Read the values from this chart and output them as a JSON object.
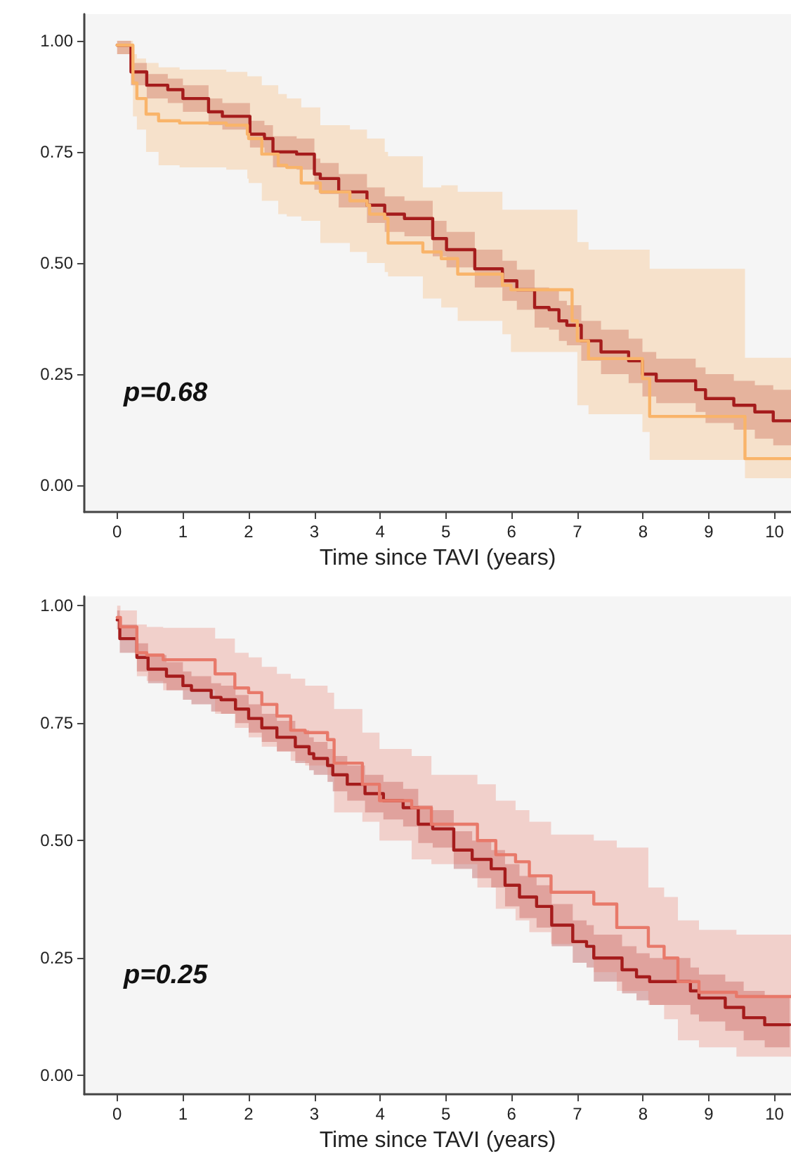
{
  "chart_data": [
    {
      "type": "step",
      "xlabel": "Time since TAVI (years)",
      "annotations": [
        "p=0.68"
      ],
      "xlim": [
        -0.5,
        10.25
      ],
      "xticks": [
        0,
        1,
        2,
        3,
        4,
        5,
        6,
        7,
        8,
        9,
        10
      ],
      "ylim": [
        -0.06,
        1.06
      ],
      "yticks": [
        {
          "value": 0,
          "label": "0.00"
        },
        {
          "value": 0.25,
          "label": "0.25"
        },
        {
          "value": 0.5,
          "label": "0.50"
        },
        {
          "value": 0.75,
          "label": "0.75"
        },
        {
          "value": 1,
          "label": "1.00"
        }
      ],
      "grid": false,
      "legend": false,
      "line_style": "solid",
      "marker": "none",
      "series": [
        {
          "color": "#a51c1c",
          "x": [
            0,
            0.21,
            0.45,
            0.77,
            1.0,
            1.39,
            1.6,
            2.02,
            2.24,
            2.37,
            2.73,
            3.0,
            3.09,
            3.37,
            3.8,
            4.07,
            4.37,
            4.8,
            5.01,
            5.44,
            5.86,
            6.08,
            6.35,
            6.57,
            6.72,
            6.84,
            7.06,
            7.36,
            7.78,
            7.99,
            8.2,
            8.8,
            8.95,
            9.38,
            9.7,
            9.98,
            10.25
          ],
          "values": [
            0.99,
            0.93,
            0.9,
            0.89,
            0.87,
            0.84,
            0.83,
            0.79,
            0.78,
            0.75,
            0.745,
            0.7,
            0.69,
            0.66,
            0.63,
            0.61,
            0.6,
            0.555,
            0.53,
            0.487,
            0.46,
            0.44,
            0.4,
            0.395,
            0.37,
            0.36,
            0.325,
            0.3,
            0.28,
            0.25,
            0.235,
            0.215,
            0.195,
            0.18,
            0.165,
            0.145,
            0.145
          ],
          "upper": [
            1.0,
            0.95,
            0.925,
            0.915,
            0.9,
            0.87,
            0.86,
            0.82,
            0.81,
            0.785,
            0.78,
            0.735,
            0.725,
            0.7,
            0.67,
            0.65,
            0.64,
            0.595,
            0.57,
            0.53,
            0.505,
            0.485,
            0.445,
            0.44,
            0.415,
            0.405,
            0.37,
            0.35,
            0.33,
            0.3,
            0.285,
            0.265,
            0.25,
            0.235,
            0.225,
            0.215,
            0.21
          ],
          "lower": [
            0.97,
            0.9,
            0.87,
            0.86,
            0.84,
            0.81,
            0.8,
            0.76,
            0.745,
            0.715,
            0.71,
            0.665,
            0.655,
            0.625,
            0.59,
            0.57,
            0.56,
            0.515,
            0.49,
            0.445,
            0.415,
            0.395,
            0.355,
            0.35,
            0.325,
            0.315,
            0.28,
            0.25,
            0.23,
            0.2,
            0.185,
            0.165,
            0.14,
            0.125,
            0.105,
            0.09,
            0.08
          ]
        },
        {
          "color": "#f9b46a",
          "x": [
            0,
            0.24,
            0.3,
            0.44,
            0.63,
            0.95,
            1.66,
            1.98,
            2.0,
            2.2,
            2.45,
            2.58,
            2.8,
            3.09,
            3.54,
            3.8,
            3.84,
            4.07,
            4.12,
            4.65,
            4.93,
            5.18,
            5.86,
            5.99,
            6.92,
            7.0,
            7.17,
            7.99,
            8.1,
            9.55,
            10.25
          ],
          "values": [
            0.99,
            0.905,
            0.87,
            0.835,
            0.82,
            0.815,
            0.81,
            0.79,
            0.78,
            0.745,
            0.72,
            0.715,
            0.68,
            0.66,
            0.64,
            0.63,
            0.61,
            0.6,
            0.545,
            0.525,
            0.51,
            0.475,
            0.45,
            0.44,
            0.37,
            0.325,
            0.285,
            0.24,
            0.155,
            0.06,
            0.06
          ],
          "upper": [
            1.0,
            0.97,
            0.96,
            0.95,
            0.94,
            0.935,
            0.93,
            0.92,
            0.92,
            0.9,
            0.88,
            0.87,
            0.85,
            0.81,
            0.8,
            0.78,
            0.78,
            0.75,
            0.74,
            0.67,
            0.675,
            0.66,
            0.62,
            0.62,
            0.62,
            0.547,
            0.53,
            0.53,
            0.487,
            0.287,
            0.287
          ],
          "lower": [
            0.97,
            0.83,
            0.8,
            0.75,
            0.72,
            0.715,
            0.71,
            0.69,
            0.68,
            0.64,
            0.61,
            0.605,
            0.595,
            0.545,
            0.525,
            0.5,
            0.5,
            0.48,
            0.47,
            0.42,
            0.4,
            0.37,
            0.34,
            0.3,
            0.3,
            0.18,
            0.16,
            0.12,
            0.057,
            0.016,
            0.016
          ]
        }
      ]
    },
    {
      "type": "step",
      "xlabel": "Time since TAVI (years)",
      "annotations": [
        "p=0.25"
      ],
      "xlim": [
        -0.5,
        10.25
      ],
      "xticks": [
        0,
        1,
        2,
        3,
        4,
        5,
        6,
        7,
        8,
        9,
        10
      ],
      "ylim": [
        -0.04,
        1.02
      ],
      "yticks": [
        {
          "value": 0,
          "label": "0.00"
        },
        {
          "value": 0.25,
          "label": "0.25"
        },
        {
          "value": 0.5,
          "label": "0.50"
        },
        {
          "value": 0.75,
          "label": "0.75"
        },
        {
          "value": 1,
          "label": "1.00"
        }
      ],
      "grid": false,
      "legend": false,
      "line_style": "solid",
      "marker": "none",
      "series": [
        {
          "color": "#a51c1c",
          "x": [
            0,
            0.04,
            0.3,
            0.47,
            0.75,
            1.0,
            1.13,
            1.43,
            1.58,
            1.8,
            2.0,
            2.2,
            2.43,
            2.71,
            2.92,
            2.99,
            3.2,
            3.28,
            3.5,
            3.77,
            4.05,
            4.35,
            4.58,
            4.8,
            5.12,
            5.4,
            5.69,
            5.9,
            6.12,
            6.38,
            6.61,
            6.93,
            7.14,
            7.25,
            7.68,
            7.9,
            8.1,
            8.72,
            8.85,
            9.25,
            9.53,
            9.85,
            10.23
          ],
          "values": [
            0.97,
            0.93,
            0.89,
            0.865,
            0.85,
            0.83,
            0.82,
            0.805,
            0.8,
            0.78,
            0.76,
            0.74,
            0.72,
            0.7,
            0.685,
            0.675,
            0.66,
            0.64,
            0.62,
            0.6,
            0.585,
            0.57,
            0.535,
            0.525,
            0.48,
            0.46,
            0.44,
            0.405,
            0.38,
            0.36,
            0.32,
            0.285,
            0.275,
            0.25,
            0.225,
            0.21,
            0.2,
            0.18,
            0.165,
            0.145,
            0.123,
            0.108,
            0.108
          ],
          "upper": [
            0.99,
            0.96,
            0.92,
            0.895,
            0.88,
            0.86,
            0.85,
            0.835,
            0.83,
            0.81,
            0.79,
            0.77,
            0.755,
            0.735,
            0.72,
            0.71,
            0.695,
            0.68,
            0.66,
            0.64,
            0.625,
            0.61,
            0.575,
            0.565,
            0.52,
            0.5,
            0.48,
            0.45,
            0.425,
            0.405,
            0.365,
            0.33,
            0.32,
            0.3,
            0.275,
            0.26,
            0.25,
            0.23,
            0.215,
            0.2,
            0.18,
            0.17,
            0.168
          ],
          "lower": [
            0.95,
            0.9,
            0.86,
            0.835,
            0.82,
            0.8,
            0.79,
            0.775,
            0.77,
            0.75,
            0.73,
            0.71,
            0.69,
            0.665,
            0.65,
            0.64,
            0.625,
            0.605,
            0.585,
            0.56,
            0.545,
            0.53,
            0.495,
            0.485,
            0.44,
            0.42,
            0.4,
            0.36,
            0.335,
            0.315,
            0.275,
            0.24,
            0.23,
            0.2,
            0.175,
            0.16,
            0.15,
            0.13,
            0.115,
            0.095,
            0.075,
            0.06,
            0.06
          ]
        },
        {
          "color": "#e8796a",
          "x": [
            0,
            0.05,
            0.3,
            0.45,
            0.7,
            1.49,
            1.79,
            2.0,
            2.2,
            2.43,
            2.64,
            2.86,
            3.2,
            3.3,
            3.73,
            3.99,
            4.48,
            4.78,
            5.48,
            5.76,
            6.06,
            6.27,
            6.6,
            7.25,
            7.6,
            8.08,
            8.32,
            8.53,
            8.85,
            9.42,
            10.25
          ],
          "values": [
            0.975,
            0.955,
            0.9,
            0.895,
            0.885,
            0.855,
            0.825,
            0.815,
            0.79,
            0.765,
            0.735,
            0.73,
            0.715,
            0.665,
            0.62,
            0.585,
            0.57,
            0.535,
            0.5,
            0.47,
            0.455,
            0.425,
            0.39,
            0.365,
            0.315,
            0.275,
            0.25,
            0.2,
            0.177,
            0.168,
            0.168
          ],
          "upper": [
            1.0,
            0.99,
            0.96,
            0.955,
            0.953,
            0.93,
            0.9,
            0.89,
            0.87,
            0.855,
            0.845,
            0.83,
            0.815,
            0.78,
            0.73,
            0.695,
            0.68,
            0.64,
            0.62,
            0.585,
            0.565,
            0.54,
            0.513,
            0.5,
            0.485,
            0.4,
            0.38,
            0.33,
            0.31,
            0.3,
            0.3
          ],
          "lower": [
            0.95,
            0.93,
            0.85,
            0.84,
            0.82,
            0.77,
            0.74,
            0.72,
            0.7,
            0.69,
            0.67,
            0.66,
            0.64,
            0.56,
            0.54,
            0.5,
            0.46,
            0.45,
            0.4,
            0.355,
            0.33,
            0.305,
            0.28,
            0.22,
            0.18,
            0.15,
            0.12,
            0.075,
            0.06,
            0.04,
            0.04
          ]
        }
      ]
    }
  ]
}
